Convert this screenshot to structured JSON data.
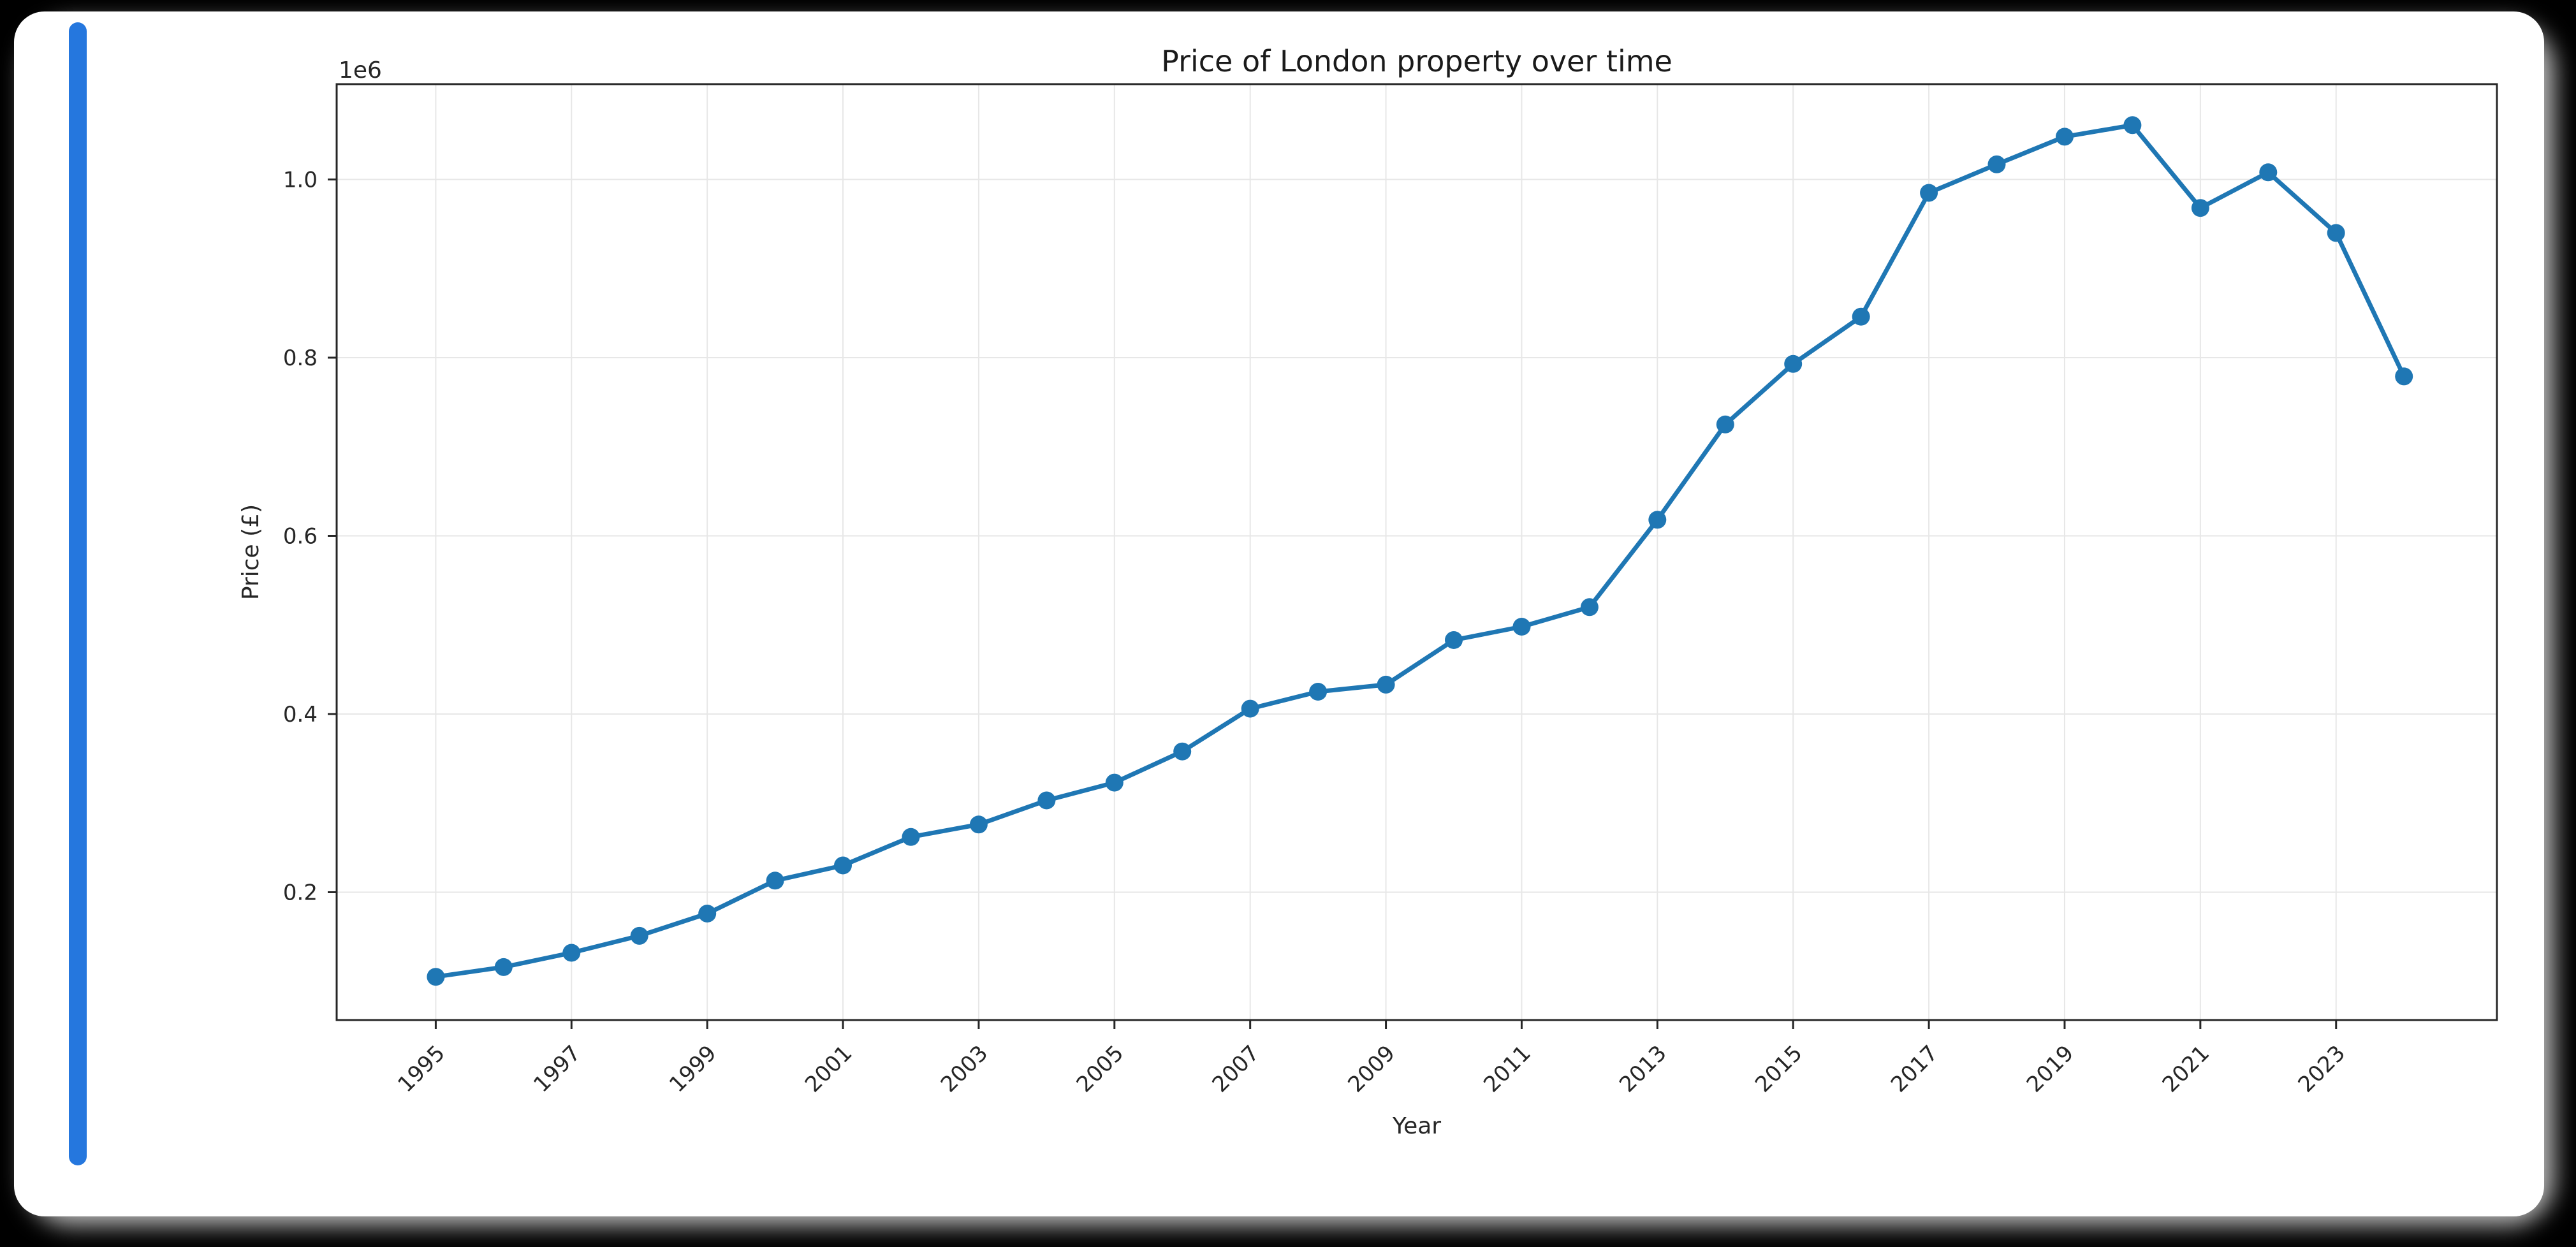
{
  "page": {
    "background_color": "#000000",
    "panel_color": "#ffffff",
    "scrollbar_color": "#2577de"
  },
  "chart_data": {
    "type": "line",
    "title": "Price of London property over time",
    "xlabel": "Year",
    "ylabel": "Price (£)",
    "offset_label": "1e6",
    "line_color": "#1f77b4",
    "marker": "circle",
    "grid": true,
    "x": [
      1995,
      1996,
      1997,
      1998,
      1999,
      2000,
      2001,
      2002,
      2003,
      2004,
      2005,
      2006,
      2007,
      2008,
      2009,
      2010,
      2011,
      2012,
      2013,
      2014,
      2015,
      2016,
      2017,
      2018,
      2019,
      2020,
      2021,
      2022,
      2023,
      2024
    ],
    "values": [
      105000,
      116000,
      132000,
      151000,
      176000,
      213000,
      230000,
      262000,
      276000,
      303000,
      323000,
      358000,
      406000,
      425000,
      433000,
      483000,
      498000,
      520000,
      618000,
      725000,
      793000,
      846000,
      985000,
      1017000,
      1048000,
      1061000,
      968000,
      1008000,
      940000,
      779000
    ],
    "xticks": [
      1995,
      1997,
      1999,
      2001,
      2003,
      2005,
      2007,
      2009,
      2011,
      2013,
      2015,
      2017,
      2019,
      2021,
      2023
    ],
    "yticks": [
      {
        "value": 200000,
        "label": "0.2"
      },
      {
        "value": 400000,
        "label": "0.4"
      },
      {
        "value": 600000,
        "label": "0.6"
      },
      {
        "value": 800000,
        "label": "0.8"
      },
      {
        "value": 1000000,
        "label": "1.0"
      }
    ],
    "xlim": [
      1993.54,
      2025.37
    ],
    "ylim": [
      56500,
      1107000
    ],
    "legend": "none"
  }
}
